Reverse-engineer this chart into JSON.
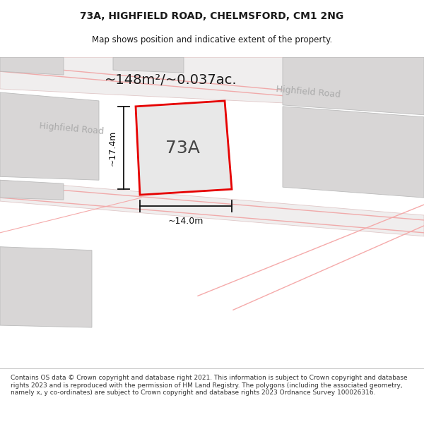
{
  "title_line1": "73A, HIGHFIELD ROAD, CHELMSFORD, CM1 2NG",
  "title_line2": "Map shows position and indicative extent of the property.",
  "area_text": "~148m²/~0.037ac.",
  "label_73a": "73A",
  "dim_width": "~14.0m",
  "dim_height": "~17.4m",
  "road_label1": "Highfield Road",
  "road_label2": "Highfield Road",
  "footer_text": "Contains OS data © Crown copyright and database right 2021. This information is subject to Crown copyright and database rights 2023 and is reproduced with the permission of HM Land Registry. The polygons (including the associated geometry, namely x, y co-ordinates) are subject to Crown copyright and database rights 2023 Ordnance Survey 100026316.",
  "bg_color": "#f5f5f5",
  "map_bg": "#ebebea",
  "plot_fill": "#e8e8e8",
  "plot_border": "#e60000",
  "road_color": "#f8f8f8",
  "building_color": "#d8d6d6",
  "dim_line_color": "#111111",
  "road_stripe_color": "#f0aaaa",
  "road_divider_color": "#e8c8c8"
}
